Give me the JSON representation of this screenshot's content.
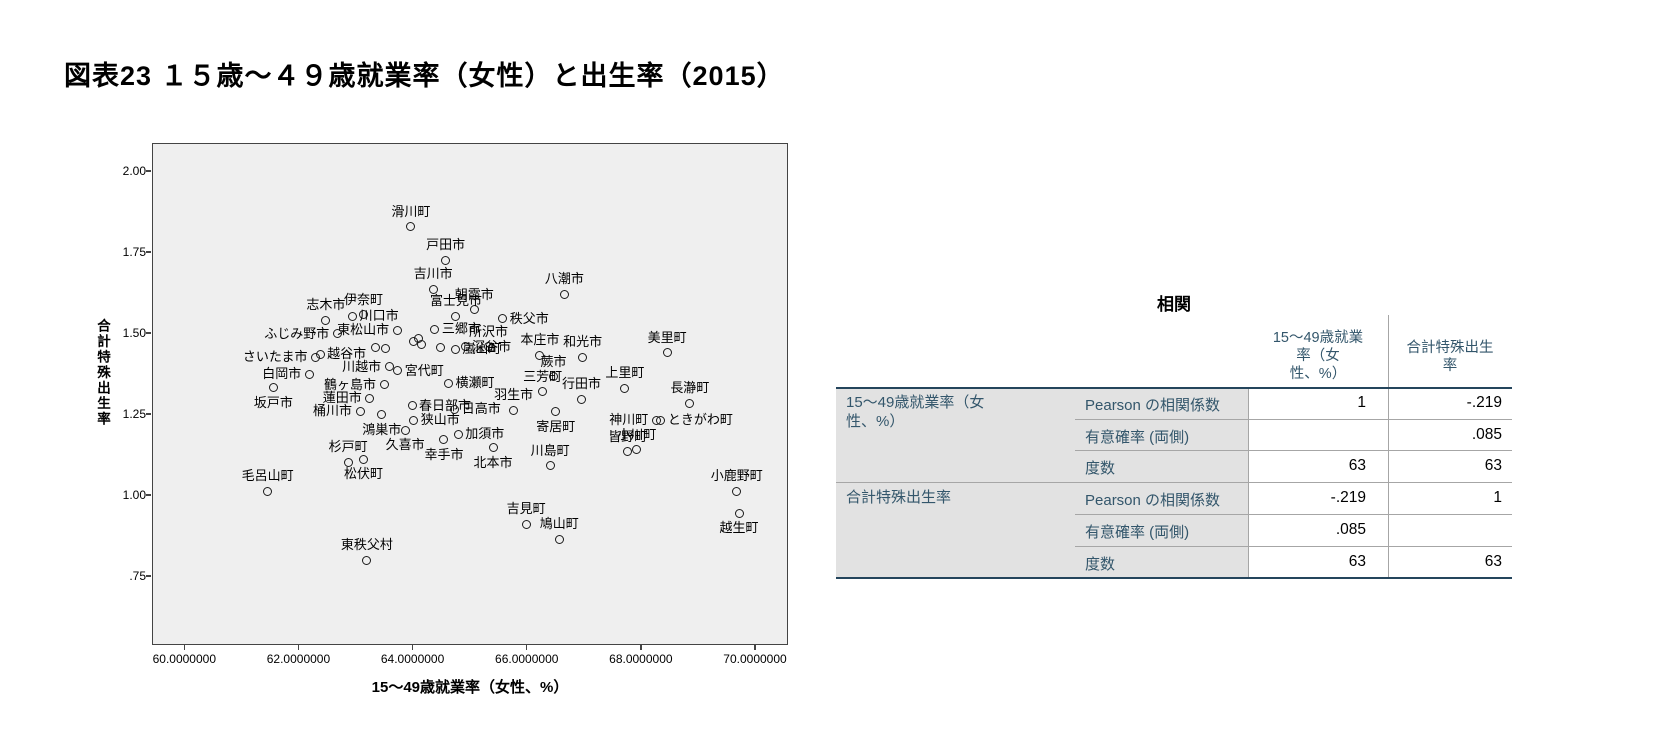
{
  "page": {
    "title": "図表23 １５歳～４９歳就業率（女性）と出生率（2015）"
  },
  "chart_data": {
    "type": "scatter",
    "title": "",
    "xlabel": "15～49歳就業率（女性、%）",
    "ylabel": "合計特殊出生率",
    "xlim": [
      59.43,
      70.58
    ],
    "ylim": [
      0.54,
      2.09
    ],
    "x_ticks": [
      {
        "value": 60,
        "label": "60.0000000"
      },
      {
        "value": 62,
        "label": "62.0000000"
      },
      {
        "value": 64,
        "label": "64.0000000"
      },
      {
        "value": 66,
        "label": "66.0000000"
      },
      {
        "value": 68,
        "label": "68.0000000"
      },
      {
        "value": 70,
        "label": "70.0000000"
      }
    ],
    "y_ticks": [
      {
        "value": 2.0,
        "label": "2.00"
      },
      {
        "value": 1.75,
        "label": "1.75"
      },
      {
        "value": 1.5,
        "label": "1.50"
      },
      {
        "value": 1.25,
        "label": "1.25"
      },
      {
        "value": 1.0,
        "label": "1.00"
      },
      {
        "value": 0.75,
        "label": ".75"
      }
    ],
    "grid": false,
    "legend": false,
    "points": [
      {
        "name": "滑川町",
        "x": 63.97,
        "y": 1.828,
        "label_pos": "above"
      },
      {
        "name": "戸田市",
        "x": 64.58,
        "y": 1.725,
        "label_pos": "above"
      },
      {
        "name": "吉川市",
        "x": 64.36,
        "y": 1.635,
        "label_pos": "above"
      },
      {
        "name": "八潮市",
        "x": 66.66,
        "y": 1.619,
        "label_pos": "above"
      },
      {
        "name": "伊奈町",
        "x": 63.14,
        "y": 1.556,
        "label_pos": "above"
      },
      {
        "name": "川口市",
        "x": 62.95,
        "y": 1.552,
        "label_pos": "right"
      },
      {
        "name": "志木市",
        "x": 62.48,
        "y": 1.54,
        "label_pos": "above"
      },
      {
        "name": "朝霞市",
        "x": 65.08,
        "y": 1.571,
        "label_pos": "above"
      },
      {
        "name": "富士見市",
        "x": 64.76,
        "y": 1.552,
        "label_pos": "above"
      },
      {
        "name": "秩父市",
        "x": 65.58,
        "y": 1.544,
        "label_pos": "right"
      },
      {
        "name": "三郷市",
        "x": 64.39,
        "y": 1.511,
        "label_pos": "right"
      },
      {
        "name": "東松山市",
        "x": 63.73,
        "y": 1.508,
        "label_pos": "left"
      },
      {
        "name": "所沢市",
        "x": 65.33,
        "y": 1.458,
        "label_pos": "above"
      },
      {
        "name": "深谷市",
        "x": 64.92,
        "y": 1.458,
        "label_pos": "right"
      },
      {
        "name": "本庄市",
        "x": 66.23,
        "y": 1.432,
        "label_pos": "above"
      },
      {
        "name": "和光市",
        "x": 66.98,
        "y": 1.425,
        "label_pos": "above"
      },
      {
        "name": "美里町",
        "x": 68.46,
        "y": 1.439,
        "label_pos": "above"
      },
      {
        "name": "さいたま市",
        "x": 62.3,
        "y": 1.425,
        "label_pos": "left"
      },
      {
        "name": "越谷市",
        "x": 62.38,
        "y": 1.435,
        "label_pos": "right"
      },
      {
        "name": "ふじみ野市",
        "x": 62.68,
        "y": 1.497,
        "label_pos": "left"
      },
      {
        "name": "嵐山町",
        "x": 64.75,
        "y": 1.45,
        "label_pos": "right"
      },
      {
        "name": "蕨市",
        "x": 66.47,
        "y": 1.365,
        "label_pos": "above"
      },
      {
        "name": "川越市",
        "x": 63.59,
        "y": 1.396,
        "label_pos": "left"
      },
      {
        "name": "宮代町",
        "x": 63.74,
        "y": 1.384,
        "label_pos": "right"
      },
      {
        "name": "三芳町",
        "x": 66.28,
        "y": 1.319,
        "label_pos": "above"
      },
      {
        "name": "横瀬町",
        "x": 64.63,
        "y": 1.345,
        "label_pos": "right"
      },
      {
        "name": "白岡市",
        "x": 62.19,
        "y": 1.372,
        "label_pos": "left"
      },
      {
        "name": "鶴ヶ島市",
        "x": 63.5,
        "y": 1.341,
        "label_pos": "left"
      },
      {
        "name": "行田市",
        "x": 66.96,
        "y": 1.296,
        "label_pos": "above"
      },
      {
        "name": "上里町",
        "x": 67.72,
        "y": 1.329,
        "label_pos": "above"
      },
      {
        "name": "坂戸市",
        "x": 61.56,
        "y": 1.331,
        "label_pos": "below"
      },
      {
        "name": "蓮田市",
        "x": 63.25,
        "y": 1.298,
        "label_pos": "left"
      },
      {
        "name": "春日部市",
        "x": 63.99,
        "y": 1.276,
        "label_pos": "right"
      },
      {
        "name": "羽生市",
        "x": 65.77,
        "y": 1.262,
        "label_pos": "above"
      },
      {
        "name": "長瀞町",
        "x": 68.86,
        "y": 1.283,
        "label_pos": "above"
      },
      {
        "name": "桶川市",
        "x": 63.08,
        "y": 1.259,
        "label_pos": "left"
      },
      {
        "name": "狭山市",
        "x": 64.02,
        "y": 1.231,
        "label_pos": "right"
      },
      {
        "name": "日高市",
        "x": 64.74,
        "y": 1.265,
        "label_pos": "right"
      },
      {
        "name": "寄居町",
        "x": 66.51,
        "y": 1.257,
        "label_pos": "below"
      },
      {
        "name": "神川町",
        "x": 68.27,
        "y": 1.231,
        "label_pos": "left"
      },
      {
        "name": "ときがわ町",
        "x": 68.35,
        "y": 1.23,
        "label_pos": "right"
      },
      {
        "name": "鴻巣市",
        "x": 63.46,
        "y": 1.247,
        "label_pos": "below"
      },
      {
        "name": "加須市",
        "x": 64.8,
        "y": 1.188,
        "label_pos": "right"
      },
      {
        "name": "皆野町",
        "x": 67.77,
        "y": 1.133,
        "label_pos": "above"
      },
      {
        "name": "小川町",
        "x": 67.93,
        "y": 1.139,
        "label_pos": "above"
      },
      {
        "name": "杉戸町",
        "x": 62.87,
        "y": 1.101,
        "label_pos": "above"
      },
      {
        "name": "久喜市",
        "x": 63.87,
        "y": 1.2,
        "label_pos": "below"
      },
      {
        "name": "幸手市",
        "x": 64.55,
        "y": 1.17,
        "label_pos": "below"
      },
      {
        "name": "北本市",
        "x": 65.41,
        "y": 1.146,
        "label_pos": "below"
      },
      {
        "name": "川島町",
        "x": 66.41,
        "y": 1.09,
        "label_pos": "above"
      },
      {
        "name": "松伏町",
        "x": 63.14,
        "y": 1.111,
        "label_pos": "below"
      },
      {
        "name": "毛呂山町",
        "x": 61.46,
        "y": 1.012,
        "label_pos": "above"
      },
      {
        "name": "小鹿野町",
        "x": 69.68,
        "y": 1.012,
        "label_pos": "above"
      },
      {
        "name": "吉見町",
        "x": 65.99,
        "y": 0.91,
        "label_pos": "above"
      },
      {
        "name": "越生町",
        "x": 69.72,
        "y": 0.944,
        "label_pos": "below"
      },
      {
        "name": "鳩山町",
        "x": 66.57,
        "y": 0.864,
        "label_pos": "above"
      },
      {
        "name": "東秩父村",
        "x": 63.2,
        "y": 0.799,
        "label_pos": "above"
      },
      {
        "name": "",
        "x": 63.35,
        "y": 1.455,
        "label_pos": "none"
      },
      {
        "name": "",
        "x": 63.53,
        "y": 1.452,
        "label_pos": "none"
      },
      {
        "name": "",
        "x": 64.01,
        "y": 1.475,
        "label_pos": "none"
      },
      {
        "name": "",
        "x": 64.11,
        "y": 1.482,
        "label_pos": "none"
      },
      {
        "name": "",
        "x": 64.16,
        "y": 1.465,
        "label_pos": "none"
      },
      {
        "name": "",
        "x": 64.49,
        "y": 1.455,
        "label_pos": "none"
      }
    ]
  },
  "table": {
    "title": "相関",
    "col_headers": [
      "15～49歳就業\n率（女\n性、%）",
      "合計特殊出生\n率"
    ],
    "groups": [
      {
        "label": "15～49歳就業率（女\n性、%）",
        "rows": [
          {
            "stat": "Pearson の相関係数",
            "v1": "1",
            "v2": "-.219"
          },
          {
            "stat": "有意確率 (両側)",
            "v1": "",
            "v2": ".085"
          },
          {
            "stat": "度数",
            "v1": "63",
            "v2": "63"
          }
        ]
      },
      {
        "label": "合計特殊出生率",
        "rows": [
          {
            "stat": "Pearson の相関係数",
            "v1": "-.219",
            "v2": "1"
          },
          {
            "stat": "有意確率 (両側)",
            "v1": ".085",
            "v2": ""
          },
          {
            "stat": "度数",
            "v1": "63",
            "v2": "63"
          }
        ]
      }
    ]
  },
  "colors": {
    "plot_bg": "#EFEFEF",
    "table_header_text": "#33566B",
    "table_gray_cell": "#E2E2E2",
    "table_thick_line": "#24455C",
    "table_thin_line": "#A6A6A6"
  }
}
